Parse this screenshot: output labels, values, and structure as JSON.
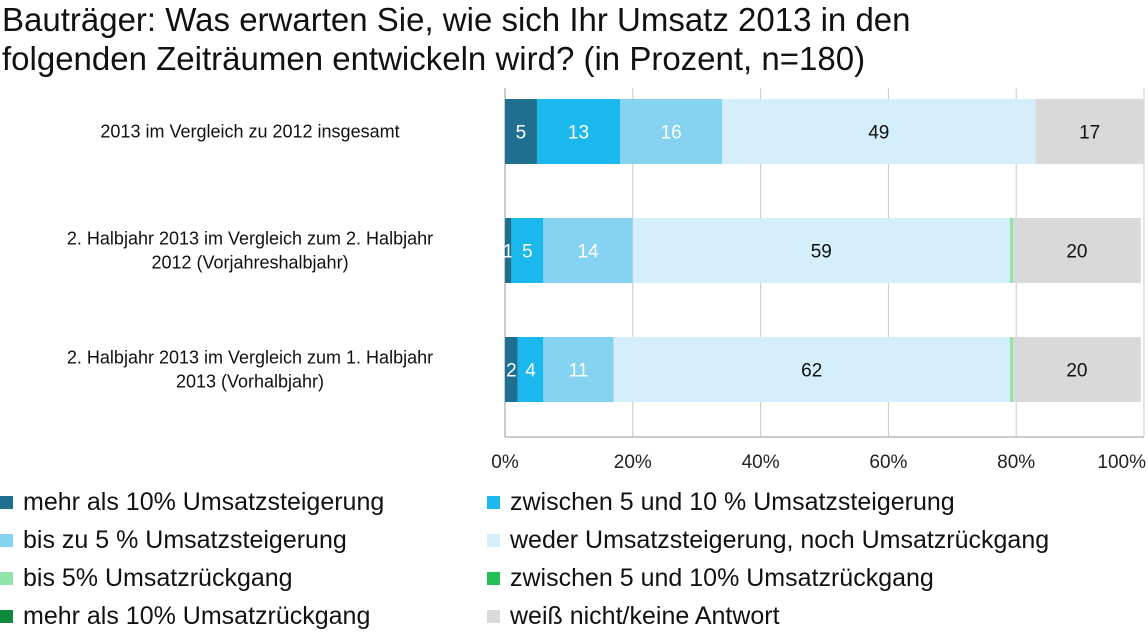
{
  "title_lines": [
    "Bauträger: Was erwarten Sie, wie sich Ihr Umsatz 2013 in den",
    "folgenden Zeiträumen entwickeln wird? (in Prozent, n=180)"
  ],
  "chart_data": {
    "type": "bar",
    "orientation": "horizontal",
    "stacked": true,
    "title": "Bauträger: Was erwarten Sie, wie sich Ihr Umsatz 2013 in den folgenden Zeiträumen entwickeln wird? (in Prozent, n=180)",
    "categories": [
      [
        "2013 im Vergleich zu 2012 insgesamt"
      ],
      [
        "2. Halbjahr 2013 im Vergleich zum 2. Halbjahr",
        "2012 (Vorjahreshalbjahr)"
      ],
      [
        "2. Halbjahr 2013 im Vergleich zum 1. Halbjahr",
        "2013 (Vorhalbjahr)"
      ]
    ],
    "xlim": [
      0,
      100
    ],
    "x_ticks": [
      "0%",
      "20%",
      "40%",
      "60%",
      "80%",
      "100%"
    ],
    "grid": true,
    "legend_position": "bottom",
    "series": [
      {
        "name": "mehr als 10% Umsatzsteigerung",
        "color": "#1f6f91",
        "label_color": "#ffffff",
        "values": [
          5,
          1,
          2
        ]
      },
      {
        "name": "zwischen 5 und 10 % Umsatzsteigerung",
        "color": "#1bb8ee",
        "label_color": "#ffffff",
        "values": [
          13,
          5,
          4
        ]
      },
      {
        "name": "bis zu 5 % Umsatzsteigerung",
        "color": "#86d3f1",
        "label_color": "#ffffff",
        "values": [
          16,
          14,
          11
        ]
      },
      {
        "name": "weder Umsatzsteigerung, noch Umsatzrückgang",
        "color": "#d4eefb",
        "label_color": "#111111",
        "values": [
          49,
          59,
          62
        ]
      },
      {
        "name": "bis 5% Umsatzrückgang",
        "color": "#8fe6a8",
        "label_color": "#111111",
        "values": [
          0,
          0.5,
          0.5
        ]
      },
      {
        "name": "zwischen 5 und 10% Umsatzrückgang",
        "color": "#22c055",
        "label_color": "#111111",
        "values": [
          0,
          0,
          0
        ]
      },
      {
        "name": "mehr als 10% Umsatzrückgang",
        "color": "#0f8a3a",
        "label_color": "#111111",
        "values": [
          0,
          0,
          0
        ]
      },
      {
        "name": "weiß nicht/keine Antwort",
        "color": "#d9d9d9",
        "label_color": "#111111",
        "values": [
          17,
          20,
          20
        ]
      }
    ]
  }
}
